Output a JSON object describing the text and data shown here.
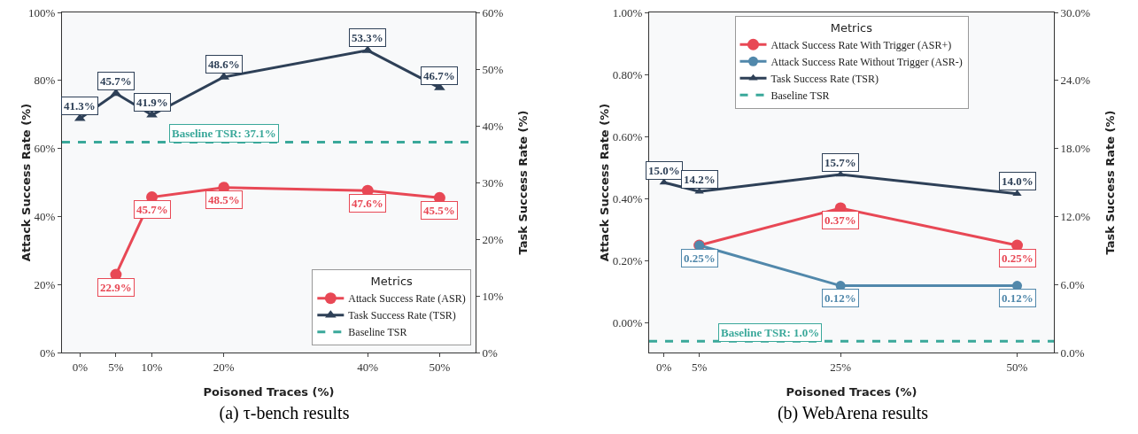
{
  "chart_data": [
    {
      "type": "line",
      "title": "(a) τ-bench results",
      "xlabel": "Poisoned Traces (%)",
      "ylabel": "Attack Success Rate (%)",
      "y2label": "Task Success Rate (%)",
      "legend_title": "Metrics",
      "legend": "bottom right",
      "grid": false,
      "xlim": [
        -2.5,
        55
      ],
      "xticks": [
        {
          "value": 0,
          "label": "0%"
        },
        {
          "value": 5,
          "label": "5%"
        },
        {
          "value": 10,
          "label": "10%"
        },
        {
          "value": 20,
          "label": "20%"
        },
        {
          "value": 40,
          "label": "40%"
        },
        {
          "value": 50,
          "label": "50%"
        }
      ],
      "ylim": [
        0,
        100
      ],
      "yticks": [
        {
          "value": 0,
          "label": "0%"
        },
        {
          "value": 20,
          "label": "20%"
        },
        {
          "value": 40,
          "label": "40%"
        },
        {
          "value": 60,
          "label": "60%"
        },
        {
          "value": 80,
          "label": "80%"
        },
        {
          "value": 100,
          "label": "100%"
        }
      ],
      "y2lim": [
        0,
        60
      ],
      "y2ticks": [
        {
          "value": 0,
          "label": "0%"
        },
        {
          "value": 10,
          "label": "10%"
        },
        {
          "value": 20,
          "label": "20%"
        },
        {
          "value": 30,
          "label": "30%"
        },
        {
          "value": 40,
          "label": "40%"
        },
        {
          "value": 50,
          "label": "50%"
        },
        {
          "value": 60,
          "label": "60%"
        }
      ],
      "series": [
        {
          "name": "Attack Success Rate (ASR)",
          "color": "#e84855",
          "marker": "circle",
          "x": [
            5,
            10,
            20,
            40,
            50
          ],
          "values": [
            22.9,
            45.7,
            48.5,
            47.6,
            45.5
          ],
          "value_labels": [
            "22.9%",
            "45.7%",
            "48.5%",
            "47.6%",
            "45.5%"
          ]
        },
        {
          "name": "Task Success Rate (TSR)",
          "color": "#2e4057",
          "marker": "triangle",
          "axis": "y2",
          "x": [
            0,
            5,
            10,
            20,
            40,
            50
          ],
          "values": [
            41.3,
            45.7,
            41.9,
            48.6,
            53.3,
            46.7
          ],
          "value_labels": [
            "41.3%",
            "45.7%",
            "41.9%",
            "48.6%",
            "53.3%",
            "46.7%"
          ]
        },
        {
          "name": "Baseline TSR",
          "color": "#3aa89a",
          "marker": "none",
          "line_style": "dashed",
          "axis": "y2",
          "x": [
            -2.5,
            55
          ],
          "values": [
            37.1,
            37.1
          ]
        }
      ],
      "annotations": [
        {
          "text": "Baseline TSR: 37.1%",
          "x": 20,
          "y": 61.8
        }
      ]
    },
    {
      "type": "line",
      "title": "(b) WebArena results",
      "xlabel": "Poisoned Traces (%)",
      "ylabel": "Attack Success Rate (%)",
      "y2label": "Task Success Rate (%)",
      "legend_title": "Metrics",
      "legend": "top",
      "grid": false,
      "xlim": [
        -2.1,
        55.2
      ],
      "xticks": [
        {
          "value": 0,
          "label": "0%"
        },
        {
          "value": 5,
          "label": "5%"
        },
        {
          "value": 25,
          "label": "25%"
        },
        {
          "value": 50,
          "label": "50%"
        }
      ],
      "ylim": [
        -0.095,
        1.0
      ],
      "yticks": [
        {
          "value": 0,
          "label": "0.00%"
        },
        {
          "value": 0.2,
          "label": "0.20%"
        },
        {
          "value": 0.4,
          "label": "0.40%"
        },
        {
          "value": 0.6,
          "label": "0.60%"
        },
        {
          "value": 0.8,
          "label": "0.80%"
        },
        {
          "value": 1.0,
          "label": "1.00%"
        }
      ],
      "y2lim": [
        0,
        30
      ],
      "y2ticks": [
        {
          "value": 0,
          "label": "0.0%"
        },
        {
          "value": 6,
          "label": "6.0%"
        },
        {
          "value": 12,
          "label": "12.0%"
        },
        {
          "value": 18,
          "label": "18.0%"
        },
        {
          "value": 24,
          "label": "24.0%"
        },
        {
          "value": 30,
          "label": "30.0%"
        }
      ],
      "series": [
        {
          "name": "Attack Success Rate With Trigger (ASR+)",
          "color": "#e84855",
          "marker": "circle",
          "x": [
            5,
            25,
            50
          ],
          "values": [
            0.25,
            0.37,
            0.25
          ],
          "value_labels": [
            null,
            "0.37%",
            "0.25%"
          ]
        },
        {
          "name": "Attack Success Rate Without Trigger (ASR-)",
          "color": "#5188ab",
          "marker": "circle",
          "x": [
            5,
            25,
            50
          ],
          "values": [
            0.25,
            0.12,
            0.12
          ],
          "value_labels": [
            "0.25%",
            "0.12%",
            "0.12%"
          ]
        },
        {
          "name": "Task Success Rate (TSR)",
          "color": "#2e4057",
          "marker": "triangle",
          "axis": "y2",
          "x": [
            0,
            5,
            25,
            50
          ],
          "values": [
            15.0,
            14.2,
            15.7,
            14.0
          ],
          "value_labels": [
            "15.0%",
            "14.2%",
            "15.7%",
            "14.0%"
          ]
        },
        {
          "name": "Baseline TSR",
          "color": "#3aa89a",
          "marker": "none",
          "line_style": "dashed",
          "axis": "y2",
          "x": [
            -2.1,
            55.2
          ],
          "values": [
            1.0,
            1.0
          ]
        }
      ],
      "annotations": [
        {
          "text": "Baseline TSR: 1.0%",
          "x": 15,
          "y": -0.06
        }
      ]
    }
  ]
}
